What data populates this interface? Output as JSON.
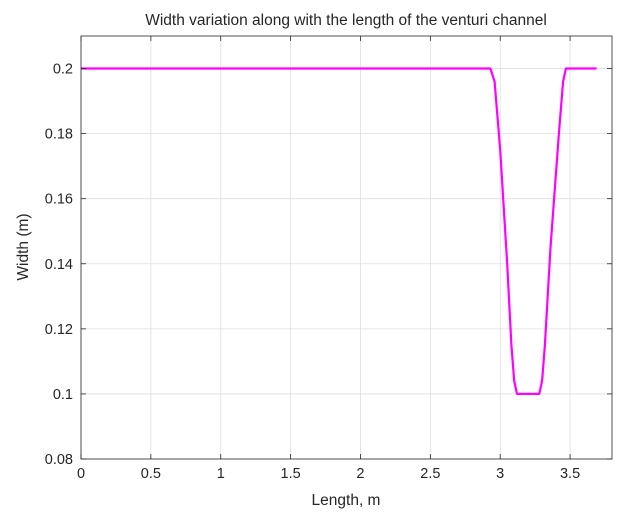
{
  "chart_data": {
    "type": "line",
    "title": "Width variation along with the length of the venturi channel",
    "xlabel": "Length, m",
    "ylabel": "Width (m)",
    "xlim": [
      0,
      3.8
    ],
    "ylim": [
      0.08,
      0.21
    ],
    "xticks": [
      0,
      0.5,
      1,
      1.5,
      2,
      2.5,
      3,
      3.5
    ],
    "xtick_labels": [
      "0",
      "0.5",
      "1",
      "1.5",
      "2",
      "2.5",
      "3",
      "3.5"
    ],
    "yticks": [
      0.08,
      0.1,
      0.12,
      0.14,
      0.16,
      0.18,
      0.2
    ],
    "ytick_labels": [
      "0.08",
      "0.1",
      "0.12",
      "0.14",
      "0.16",
      "0.18",
      "0.2"
    ],
    "grid": true,
    "series": [
      {
        "color": "#ff00ff",
        "x": [
          0,
          2.93,
          2.96,
          3.0,
          3.05,
          3.08,
          3.1,
          3.12,
          3.28,
          3.3,
          3.32,
          3.36,
          3.42,
          3.45,
          3.47,
          3.69
        ],
        "y": [
          0.2,
          0.2,
          0.196,
          0.175,
          0.14,
          0.115,
          0.104,
          0.1,
          0.1,
          0.104,
          0.115,
          0.145,
          0.18,
          0.196,
          0.2,
          0.2
        ]
      }
    ]
  }
}
